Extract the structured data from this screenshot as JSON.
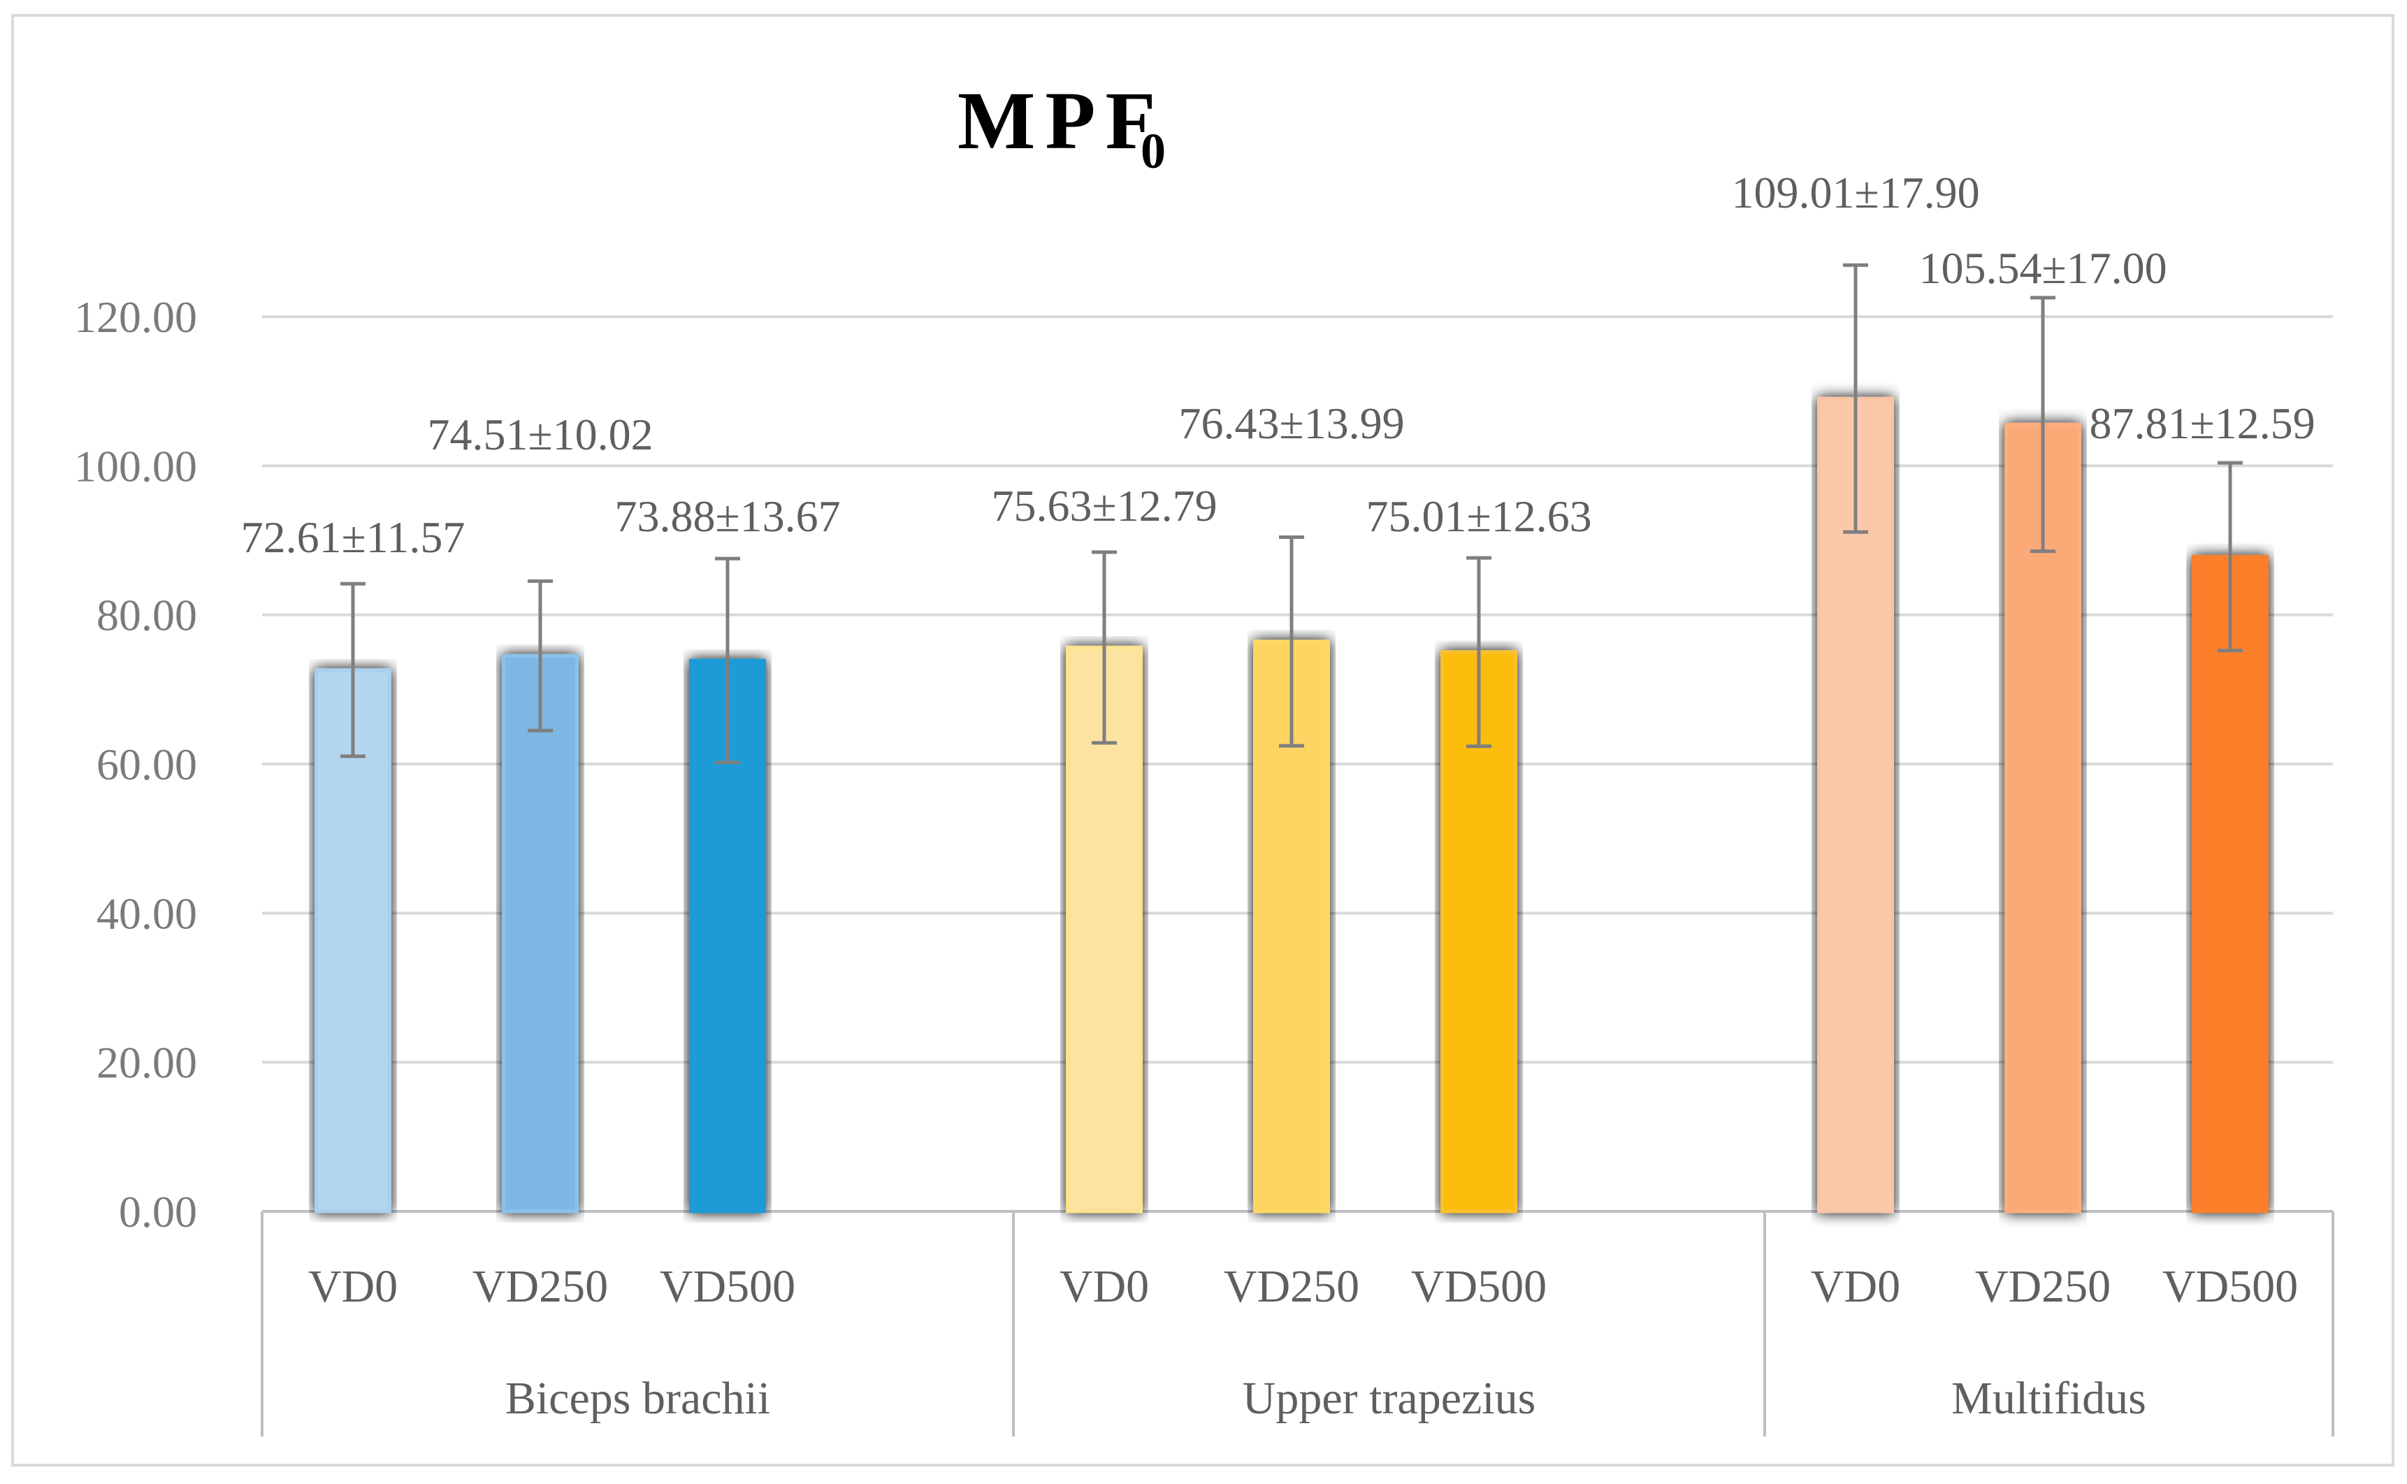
{
  "chart_data": {
    "type": "bar",
    "title": "MPF",
    "title_subscript": "0",
    "ylim": [
      0,
      120
    ],
    "y_ticks": [
      "0.00",
      "20.00",
      "40.00",
      "60.00",
      "80.00",
      "100.00",
      "120.00"
    ],
    "y_tick_values": [
      0,
      20,
      40,
      60,
      80,
      100,
      120
    ],
    "grid": true,
    "groups": [
      {
        "name": "Biceps brachii",
        "bars": [
          {
            "label": "VD0",
            "value": 72.61,
            "error": 11.57,
            "text": "72.61±11.57",
            "color": "#b3d6ef",
            "edge": "#a9cfee"
          },
          {
            "label": "VD250",
            "value": 74.51,
            "error": 10.02,
            "text": "74.51±10.02",
            "color": "#7cb8e3",
            "edge": "#8cc2ea"
          },
          {
            "label": "VD500",
            "value": 73.88,
            "error": 13.67,
            "text": "73.88±13.67",
            "color": "#1b9bd7",
            "edge": "#1b9bd7"
          }
        ]
      },
      {
        "name": "Upper trapezius",
        "bars": [
          {
            "label": "VD0",
            "value": 75.63,
            "error": 12.79,
            "text": "75.63±12.79",
            "color": "#fde3a0",
            "edge": "#fde28f"
          },
          {
            "label": "VD250",
            "value": 76.43,
            "error": 13.99,
            "text": "76.43±13.99",
            "color": "#fed463",
            "edge": "#fdd862"
          },
          {
            "label": "VD500",
            "value": 75.01,
            "error": 12.63,
            "text": "75.01±12.63",
            "color": "#fdbd10",
            "edge": "#fbc12a"
          }
        ]
      },
      {
        "name": "Multifidus",
        "bars": [
          {
            "label": "VD0",
            "value": 109.01,
            "error": 17.9,
            "text": "109.01±17.90",
            "color": "#fbc8aa",
            "edge": "#fac5a5"
          },
          {
            "label": "VD250",
            "value": 105.54,
            "error": 17.0,
            "text": "105.54±17.00",
            "color": "#fca978",
            "edge": "#fcae7e"
          },
          {
            "label": "VD500",
            "value": 87.81,
            "error": 12.59,
            "text": "87.81±12.59",
            "color": "#fd7f2c",
            "edge": "#f77f2f"
          }
        ]
      }
    ]
  }
}
